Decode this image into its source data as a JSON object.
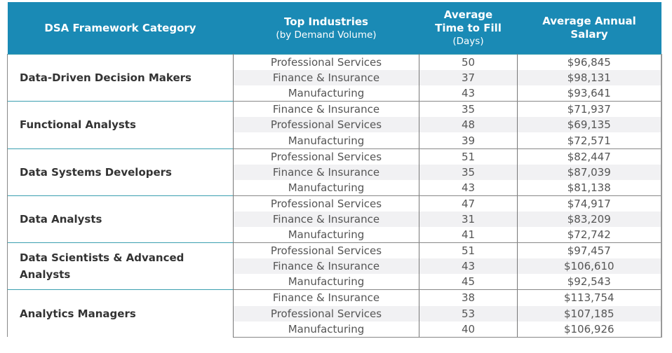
{
  "headers": {
    "category": "DSA Framework Category",
    "industries": "Top Industries",
    "industries_sub": "(by Demand Volume)",
    "time_1": "Average",
    "time_2": "Time to Fill",
    "time_sub": "(Days)",
    "salary_1": "Average Annual",
    "salary_2": "Salary"
  },
  "groups": [
    {
      "category": "Data-Driven Decision Makers",
      "rows": [
        {
          "industry": "Professional Services",
          "days": "50",
          "salary": "$96,845"
        },
        {
          "industry": "Finance & Insurance",
          "days": "37",
          "salary": "$98,131"
        },
        {
          "industry": "Manufacturing",
          "days": "43",
          "salary": "$93,641"
        }
      ]
    },
    {
      "category": "Functional Analysts",
      "rows": [
        {
          "industry": "Finance & Insurance",
          "days": "35",
          "salary": "$71,937"
        },
        {
          "industry": "Professional Services",
          "days": "48",
          "salary": "$69,135"
        },
        {
          "industry": "Manufacturing",
          "days": "39",
          "salary": "$72,571"
        }
      ]
    },
    {
      "category": "Data Systems Developers",
      "rows": [
        {
          "industry": "Professional Services",
          "days": "51",
          "salary": "$82,447"
        },
        {
          "industry": "Finance & Insurance",
          "days": "35",
          "salary": "$87,039"
        },
        {
          "industry": "Manufacturing",
          "days": "43",
          "salary": "$81,138"
        }
      ]
    },
    {
      "category": "Data Analysts",
      "rows": [
        {
          "industry": "Professional Services",
          "days": "47",
          "salary": "$74,917"
        },
        {
          "industry": "Finance & Insurance",
          "days": "31",
          "salary": "$83,209"
        },
        {
          "industry": "Manufacturing",
          "days": "41",
          "salary": "$72,742"
        }
      ]
    },
    {
      "category": "Data Scientists & Advanced Analysts",
      "rows": [
        {
          "industry": "Professional Services",
          "days": "51",
          "salary": "$97,457"
        },
        {
          "industry": "Finance & Insurance",
          "days": "43",
          "salary": "$106,610"
        },
        {
          "industry": "Manufacturing",
          "days": "45",
          "salary": "$92,543"
        }
      ]
    },
    {
      "category": "Analytics Managers",
      "rows": [
        {
          "industry": "Finance & Insurance",
          "days": "38",
          "salary": "$113,754"
        },
        {
          "industry": "Professional Services",
          "days": "53",
          "salary": "$107,185"
        },
        {
          "industry": "Manufacturing",
          "days": "40",
          "salary": "$106,926"
        }
      ]
    }
  ]
}
